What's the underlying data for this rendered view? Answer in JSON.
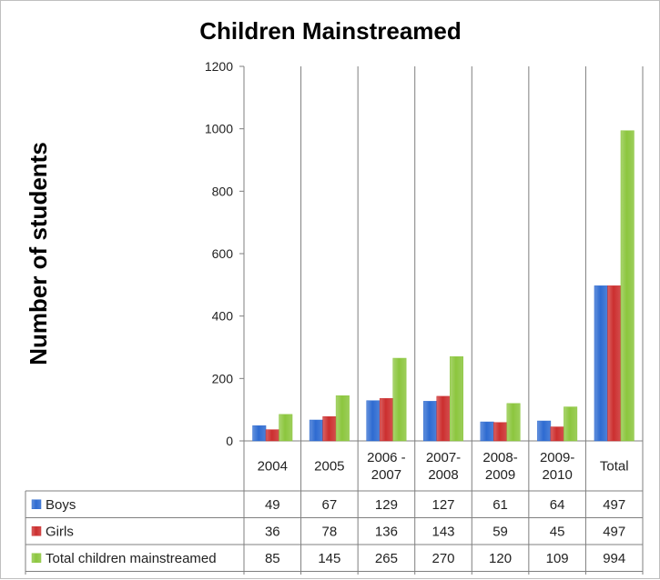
{
  "chart_data": {
    "type": "bar",
    "title": "Children Mainstreamed",
    "ylabel": "Number of students",
    "xlabel": "",
    "ylim": [
      0,
      1200
    ],
    "yticks": [
      0,
      200,
      400,
      600,
      800,
      1000,
      1200
    ],
    "categories": [
      [
        "2004"
      ],
      [
        "2005"
      ],
      [
        "2006 -",
        "2007"
      ],
      [
        "2007-",
        "2008"
      ],
      [
        "2008-",
        "2009"
      ],
      [
        "2009-",
        "2010"
      ],
      [
        "Total"
      ]
    ],
    "series": [
      {
        "name": "Boys",
        "values": [
          49,
          67,
          129,
          127,
          61,
          64,
          497
        ],
        "color": "#2e6bd1"
      },
      {
        "name": "Girls",
        "values": [
          36,
          78,
          136,
          143,
          59,
          45,
          497
        ],
        "color": "#cc2f2f"
      },
      {
        "name": "Total children mainstreamed",
        "values": [
          85,
          145,
          265,
          270,
          120,
          109,
          994
        ],
        "color": "#8cc63e"
      }
    ],
    "grid": false,
    "legend": "data-table"
  }
}
